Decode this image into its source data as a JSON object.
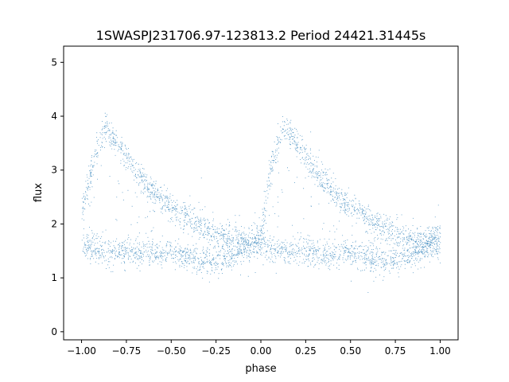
{
  "chart_data": {
    "type": "scatter",
    "title": "1SWASPJ231706.97-123813.2 Period 24421.31445s",
    "xlabel": "phase",
    "ylabel": "flux",
    "xlim": [
      -1.1,
      1.1
    ],
    "ylim": [
      -0.15,
      5.3
    ],
    "x_ticks": [
      -1.0,
      -0.75,
      -0.5,
      -0.25,
      0.0,
      0.25,
      0.5,
      0.75,
      1.0
    ],
    "x_tick_labels": [
      "−1.00",
      "−0.75",
      "−0.50",
      "−0.25",
      "0.00",
      "0.25",
      "0.50",
      "0.75",
      "1.00"
    ],
    "y_ticks": [
      0,
      1,
      2,
      3,
      4,
      5
    ],
    "y_tick_labels": [
      "0",
      "1",
      "2",
      "3",
      "4",
      "5"
    ],
    "grid": false,
    "legend": "none",
    "point_color": "#1f77b4",
    "series": [
      {
        "description_points": "phase-folded light curve, repeated over two cycles",
        "x": [
          -1.0,
          -0.95,
          -0.9,
          -0.88,
          -0.85,
          -0.8,
          -0.75,
          -0.7,
          -0.65,
          -0.6,
          -0.55,
          -0.5,
          -0.45,
          -0.4,
          -0.35,
          -0.3,
          -0.25,
          -0.2,
          -0.15,
          -0.1,
          -0.05,
          0.0,
          0.05,
          0.1,
          0.12,
          0.15,
          0.2,
          0.25,
          0.3,
          0.35,
          0.4,
          0.45,
          0.5,
          0.55,
          0.6,
          0.65,
          0.7,
          0.75,
          0.8,
          0.85,
          0.9,
          0.95,
          1.0
        ],
        "y_upper": [
          2.2,
          3.0,
          3.6,
          3.75,
          3.7,
          3.5,
          3.25,
          3.0,
          2.8,
          2.6,
          2.45,
          2.3,
          2.2,
          2.1,
          2.0,
          1.9,
          1.8,
          1.75,
          1.7,
          1.65,
          1.7,
          1.8,
          3.0,
          3.6,
          3.75,
          3.7,
          3.5,
          3.25,
          3.0,
          2.8,
          2.6,
          2.45,
          2.3,
          2.2,
          2.1,
          2.0,
          1.9,
          1.8,
          1.75,
          1.7,
          1.65,
          1.7,
          1.8
        ],
        "y_lower": [
          1.6,
          1.55,
          1.5,
          1.5,
          1.5,
          1.5,
          1.5,
          1.5,
          1.45,
          1.45,
          1.45,
          1.5,
          1.45,
          1.4,
          1.35,
          1.3,
          1.3,
          1.35,
          1.45,
          1.55,
          1.6,
          1.6,
          1.55,
          1.5,
          1.5,
          1.5,
          1.5,
          1.5,
          1.5,
          1.45,
          1.45,
          1.45,
          1.5,
          1.45,
          1.4,
          1.35,
          1.3,
          1.3,
          1.35,
          1.45,
          1.55,
          1.6,
          1.6
        ]
      }
    ]
  }
}
